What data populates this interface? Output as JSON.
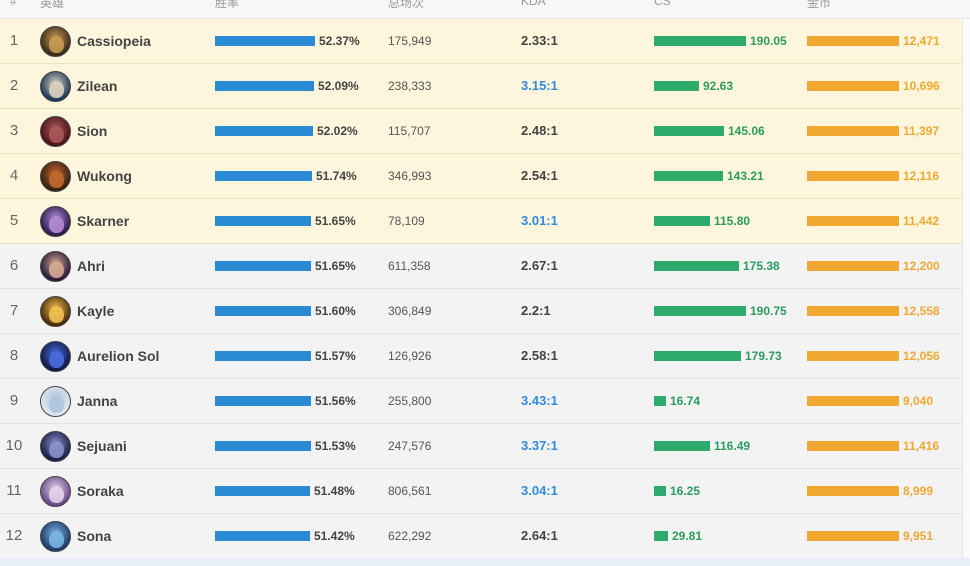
{
  "header": {
    "col_rank": "#",
    "col_champion": "英雄",
    "col_winrate": "胜率",
    "col_games": "总场次",
    "col_kda": "KDA",
    "col_cs": "CS",
    "col_gold": "金币"
  },
  "rows": [
    {
      "rank": "1",
      "champion": "Cassiopeia",
      "win_rate": "52.37%",
      "win_rate_value": 52.37,
      "games": "175,949",
      "kda": "2.33:1",
      "kda_highlight": false,
      "cs": "190.05",
      "cs_value": 190.05,
      "gold": "12,471",
      "highlighted": true,
      "avatar_colors": [
        "#3d2a1c",
        "#c89a52"
      ]
    },
    {
      "rank": "2",
      "champion": "Zilean",
      "win_rate": "52.09%",
      "win_rate_value": 52.09,
      "games": "238,333",
      "kda": "3.15:1",
      "kda_highlight": true,
      "cs": "92.63",
      "cs_value": 92.63,
      "gold": "10,696",
      "highlighted": true,
      "avatar_colors": [
        "#1e3a5a",
        "#d9d2c0"
      ]
    },
    {
      "rank": "3",
      "champion": "Sion",
      "win_rate": "52.02%",
      "win_rate_value": 52.02,
      "games": "115,707",
      "kda": "2.48:1",
      "kda_highlight": false,
      "cs": "145.06",
      "cs_value": 145.06,
      "gold": "11,397",
      "highlighted": true,
      "avatar_colors": [
        "#4a1418",
        "#a8565a"
      ]
    },
    {
      "rank": "4",
      "champion": "Wukong",
      "win_rate": "51.74%",
      "win_rate_value": 51.74,
      "games": "346,993",
      "kda": "2.54:1",
      "kda_highlight": false,
      "cs": "143.21",
      "cs_value": 143.21,
      "gold": "12,116",
      "highlighted": true,
      "avatar_colors": [
        "#3a1e12",
        "#c0682e"
      ]
    },
    {
      "rank": "5",
      "champion": "Skarner",
      "win_rate": "51.65%",
      "win_rate_value": 51.65,
      "games": "78,109",
      "kda": "3.01:1",
      "kda_highlight": true,
      "cs": "115.80",
      "cs_value": 115.8,
      "gold": "11,442",
      "highlighted": true,
      "avatar_colors": [
        "#2c1c4e",
        "#b48ad6"
      ]
    },
    {
      "rank": "6",
      "champion": "Ahri",
      "win_rate": "51.65%",
      "win_rate_value": 51.65,
      "games": "611,358",
      "kda": "2.67:1",
      "kda_highlight": false,
      "cs": "175.38",
      "cs_value": 175.38,
      "gold": "12,200",
      "highlighted": false,
      "avatar_colors": [
        "#2a1a3a",
        "#d4a890"
      ]
    },
    {
      "rank": "7",
      "champion": "Kayle",
      "win_rate": "51.60%",
      "win_rate_value": 51.6,
      "games": "306,849",
      "kda": "2.2:1",
      "kda_highlight": false,
      "cs": "190.75",
      "cs_value": 190.75,
      "gold": "12,558",
      "highlighted": false,
      "avatar_colors": [
        "#4a2c0c",
        "#f0c050"
      ]
    },
    {
      "rank": "8",
      "champion": "Aurelion Sol",
      "win_rate": "51.57%",
      "win_rate_value": 51.57,
      "games": "126,926",
      "kda": "2.58:1",
      "kda_highlight": false,
      "cs": "179.73",
      "cs_value": 179.73,
      "gold": "12,056",
      "highlighted": false,
      "avatar_colors": [
        "#0e1a4a",
        "#4a6ad8"
      ]
    },
    {
      "rank": "9",
      "champion": "Janna",
      "win_rate": "51.56%",
      "win_rate_value": 51.56,
      "games": "255,800",
      "kda": "3.43:1",
      "kda_highlight": true,
      "cs": "16.74",
      "cs_value": 16.74,
      "gold": "9,040",
      "highlighted": false,
      "avatar_colors": [
        "#dfe6f2",
        "#b0c4e0"
      ]
    },
    {
      "rank": "10",
      "champion": "Sejuani",
      "win_rate": "51.53%",
      "win_rate_value": 51.53,
      "games": "247,576",
      "kda": "3.37:1",
      "kda_highlight": true,
      "cs": "116.49",
      "cs_value": 116.49,
      "gold": "11,416",
      "highlighted": false,
      "avatar_colors": [
        "#1a2048",
        "#8a90c8"
      ]
    },
    {
      "rank": "11",
      "champion": "Soraka",
      "win_rate": "51.48%",
      "win_rate_value": 51.48,
      "games": "806,561",
      "kda": "3.04:1",
      "kda_highlight": true,
      "cs": "16.25",
      "cs_value": 16.25,
      "gold": "8,999",
      "highlighted": false,
      "avatar_colors": [
        "#6a4a8a",
        "#e4d0ea"
      ]
    },
    {
      "rank": "12",
      "champion": "Sona",
      "win_rate": "51.42%",
      "win_rate_value": 51.42,
      "games": "622,292",
      "kda": "2.64:1",
      "kda_highlight": false,
      "cs": "29.81",
      "cs_value": 29.81,
      "gold": "9,951",
      "highlighted": false,
      "avatar_colors": [
        "#1e3a6a",
        "#7ab4e0"
      ]
    }
  ],
  "colors": {
    "winrate_bar": "#2a8bd4",
    "cs_bar": "#2eab6c",
    "gold_bar": "#f0a830",
    "kda_highlight": "#2d8ce0",
    "row_highlight_bg": "#fdf6dc"
  }
}
